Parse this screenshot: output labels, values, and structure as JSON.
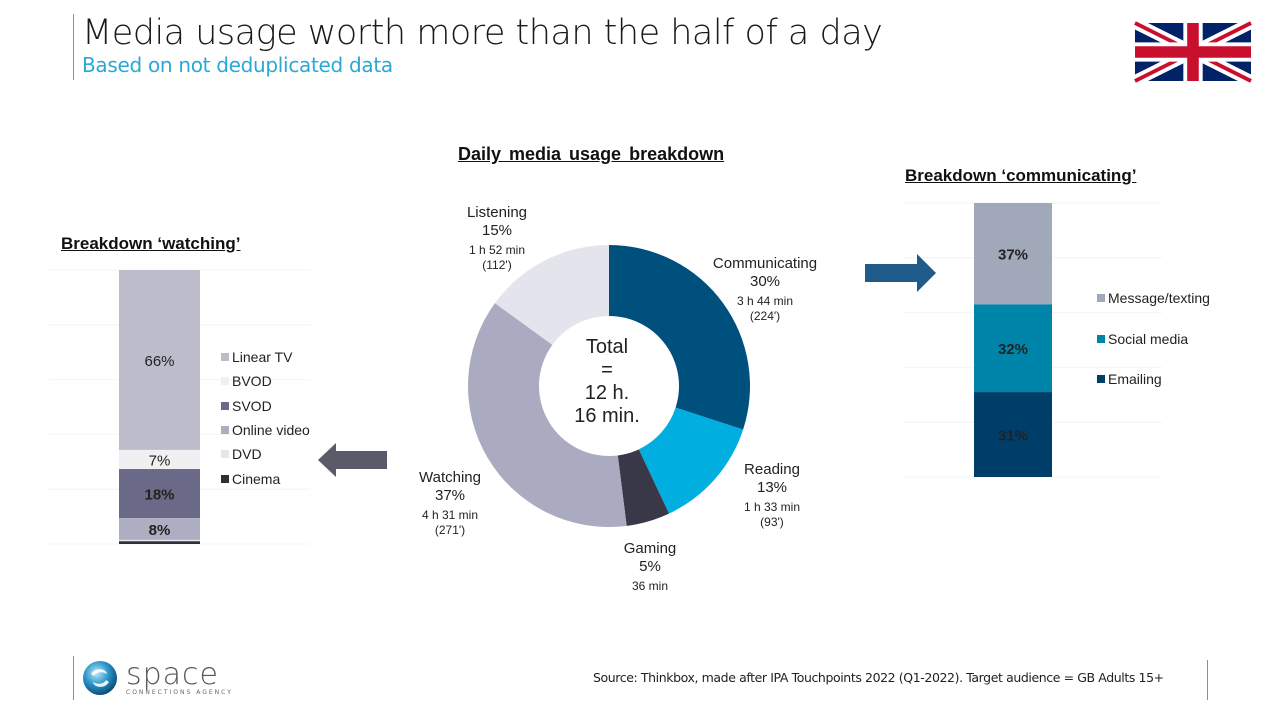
{
  "header": {
    "title": "Media usage worth more than the half of a day",
    "subtitle": "Based on not deduplicated data"
  },
  "flag": {
    "icon": "uk-flag-icon",
    "colors": {
      "blue": "#012169",
      "red": "#C8102E",
      "white": "#FFFFFF"
    }
  },
  "footer": {
    "logo_name": "space",
    "logo_tagline": "CONNECTIONS AGENCY",
    "source": "Source: Thinkbox, made after IPA Touchpoints 2022 (Q1-2022). Target audience = GB Adults 15+"
  },
  "arrows": {
    "left": {
      "icon": "arrow-left-icon",
      "color": "#5a5a68"
    },
    "right": {
      "icon": "arrow-right-icon",
      "color": "#1e5a8a"
    }
  },
  "chart_data": [
    {
      "type": "pie",
      "title": "Daily media usage breakdown",
      "donut": true,
      "center_label": [
        "Total",
        "=",
        "12 h.",
        "16 min."
      ],
      "slices": [
        {
          "name": "Communicating",
          "value": 30,
          "label": "30%",
          "duration": "3 h 44 min",
          "minutes_label": "(224')",
          "color": "#00507e"
        },
        {
          "name": "Reading",
          "value": 13,
          "label": "13%",
          "duration": "1 h 33 min",
          "minutes_label": "(93')",
          "color": "#00aee0"
        },
        {
          "name": "Gaming",
          "value": 5,
          "label": "5%",
          "duration": "36 min",
          "minutes_label": "",
          "color": "#383848"
        },
        {
          "name": "Watching",
          "value": 37,
          "label": "37%",
          "duration": "4 h 31 min",
          "minutes_label": "(271')",
          "color": "#aaabc0"
        },
        {
          "name": "Listening",
          "value": 15,
          "label": "15%",
          "duration": "1 h 52 min",
          "minutes_label": "(112')",
          "color": "#e4e4ec"
        }
      ]
    },
    {
      "type": "bar",
      "stacked": true,
      "title": "Breakdown ‘watching’",
      "ylim": [
        0,
        100
      ],
      "series": [
        {
          "name": "Linear TV",
          "value": 66,
          "label": "66%",
          "color": "#bcbcca",
          "label_color": "#333333",
          "bold": false
        },
        {
          "name": "BVOD",
          "value": 7,
          "label": "7%",
          "color": "#f0f0f2",
          "label_color": "#333333",
          "bold": false
        },
        {
          "name": "SVOD",
          "value": 18,
          "label": "18%",
          "color": "#6a6a88",
          "label_color": "#ffffff",
          "bold": true
        },
        {
          "name": "Online video",
          "value": 8,
          "label": "8%",
          "color": "#aeaec2",
          "label_color": "#ffffff",
          "bold": true
        },
        {
          "name": "DVD",
          "value": 0.5,
          "label": "",
          "color": "#e6e6ec",
          "label_color": "#333333",
          "bold": false
        },
        {
          "name": "Cinema",
          "value": 1,
          "label": "",
          "color": "#2e2e36",
          "label_color": "#333333",
          "bold": false
        }
      ],
      "legend": [
        "Linear TV",
        "BVOD",
        "SVOD",
        "Online video",
        "DVD",
        "Cinema"
      ],
      "legend_position": "right"
    },
    {
      "type": "bar",
      "stacked": true,
      "title": "Breakdown ‘communicating’",
      "ylim": [
        0,
        100
      ],
      "series": [
        {
          "name": "Message/texting",
          "value": 37,
          "label": "37%",
          "color": "#a0a8ba",
          "label_color": "#ffffff"
        },
        {
          "name": "Social media",
          "value": 32,
          "label": "32%",
          "color": "#0085aa",
          "label_color": "#ffffff"
        },
        {
          "name": "Emailing",
          "value": 31,
          "label": "31%",
          "color": "#003e6a",
          "label_color": "#ffffff"
        }
      ],
      "legend": [
        "Message/texting",
        "Social media",
        "Emailing"
      ],
      "legend_position": "right"
    }
  ]
}
